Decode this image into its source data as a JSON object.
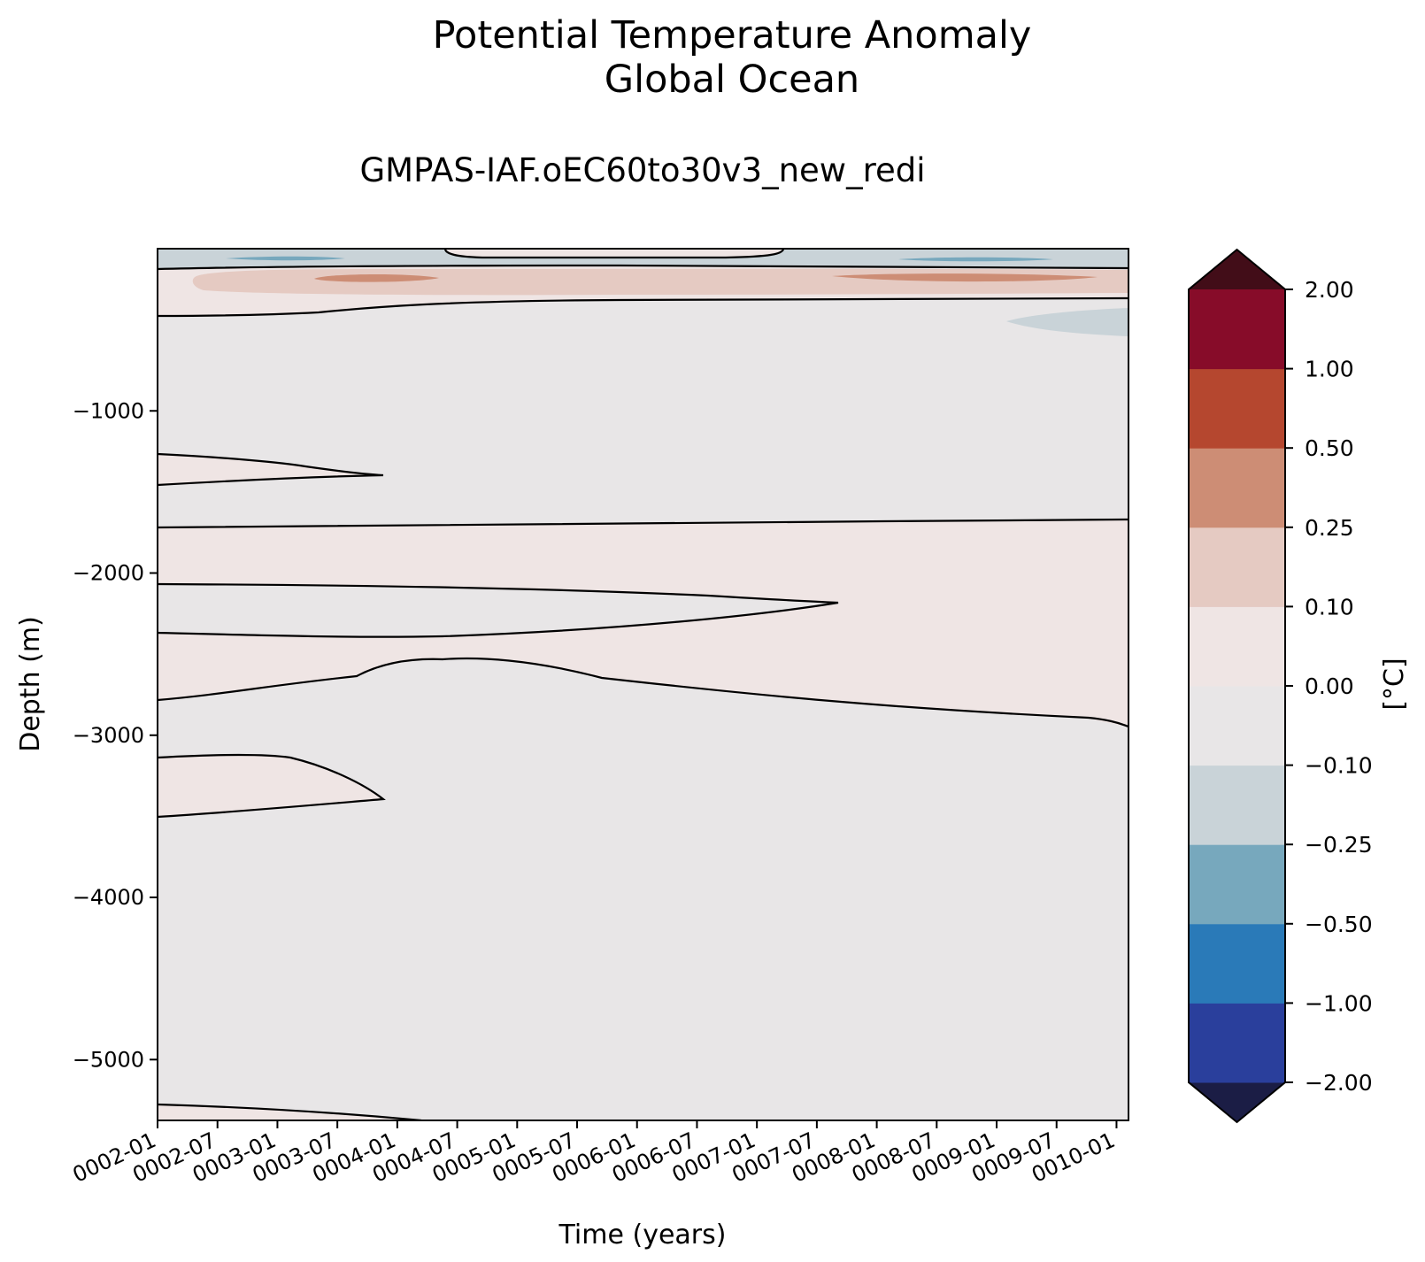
{
  "chart_data": {
    "type": "contour",
    "title": "Potential Temperature Anomaly\nGlobal Ocean",
    "title_lines": [
      "Potential Temperature Anomaly",
      "Global Ocean"
    ],
    "subtitle": "GMPAS-IAF.oEC60to30v3_new_redi",
    "xlabel": "Time (years)",
    "ylabel": "Depth (m)",
    "x_ticks": [
      "0002-01",
      "0002-07",
      "0003-01",
      "0003-07",
      "0004-01",
      "0004-07",
      "0005-01",
      "0005-07",
      "0006-01",
      "0006-07",
      "0007-01",
      "0007-07",
      "0008-01",
      "0008-07",
      "0009-01",
      "0009-07",
      "0010-01"
    ],
    "x_range_years": [
      2.0,
      10.1
    ],
    "y_ticks": [
      "−1000",
      "−2000",
      "−3000",
      "−4000",
      "−5000"
    ],
    "y_tick_values": [
      -1000,
      -2000,
      -3000,
      -4000,
      -5000
    ],
    "y_range": [
      -5375,
      0
    ],
    "colorbar": {
      "label": "[°C]",
      "levels": [
        -2,
        -1,
        -0.5,
        -0.25,
        -0.1,
        0,
        0.1,
        0.25,
        0.5,
        1,
        2
      ],
      "tick_labels": [
        "−2.00",
        "−1.00",
        "−0.50",
        "−0.25",
        "−0.10",
        "0.00",
        "0.10",
        "0.25",
        "0.50",
        "1.00",
        "2.00"
      ],
      "bin_colors": [
        "#2a3f9c",
        "#2a7ab8",
        "#77a8bd",
        "#c9d3d8",
        "#e8e6e7",
        "#efe5e4",
        "#e5cac2",
        "#cd8d75",
        "#b5472f",
        "#870c29"
      ],
      "under_color": "#1b1d45",
      "over_color": "#420d18"
    },
    "regions": [
      {
        "name": "surface-cool-layer",
        "sign": "negative",
        "min_value": -0.25,
        "depth_range": [
          -125,
          0
        ],
        "time_range": [
          2.0,
          10.1
        ]
      },
      {
        "name": "surface-warm-patch",
        "sign": "positive",
        "min_value": 0.0,
        "depth_range": [
          -35,
          0
        ],
        "time_range": [
          4.4,
          7.2
        ]
      },
      {
        "name": "near-surface-warm-layer",
        "sign": "positive",
        "max_value": 0.5,
        "depth_range": [
          -430,
          -125
        ],
        "time_range": [
          2.0,
          10.1
        ]
      },
      {
        "name": "warm-core-early",
        "sign": "positive",
        "value_band": [
          0.25,
          0.5
        ],
        "depth_center": -185,
        "time_range": [
          3.3,
          4.4
        ]
      },
      {
        "name": "warm-core-late",
        "sign": "positive",
        "value_band": [
          0.25,
          0.5
        ],
        "depth_center": -185,
        "time_range": [
          7.7,
          9.7
        ]
      },
      {
        "name": "cool-tongue-late",
        "sign": "negative",
        "value_band": [
          -0.25,
          -0.1
        ],
        "depth_range": [
          -560,
          -400
        ],
        "time_range": [
          9.3,
          10.1
        ]
      },
      {
        "name": "intermediate-warm-wedge",
        "sign": "positive",
        "depth_range": [
          -1455,
          -1270
        ],
        "time_range": [
          2.0,
          3.9
        ]
      },
      {
        "name": "mid-depth-warm-band",
        "sign": "positive",
        "depth_range": [
          -2950,
          -1670
        ],
        "time_range": [
          2.0,
          10.1
        ]
      },
      {
        "name": "deep-warm-wedge",
        "sign": "positive",
        "depth_range": [
          -3500,
          -3130
        ],
        "time_range": [
          2.0,
          3.9
        ]
      },
      {
        "name": "bottom-warm-layer",
        "sign": "positive",
        "depth_range": [
          -5375,
          -5270
        ],
        "time_range": [
          2.0,
          4.4
        ]
      }
    ],
    "grid": false,
    "colorbar_position": "right"
  }
}
